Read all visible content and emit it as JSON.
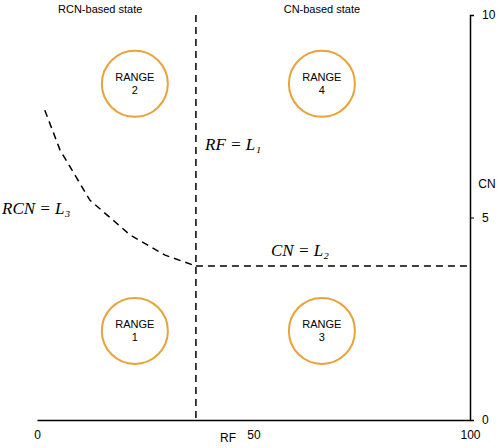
{
  "chart_data": {
    "type": "line",
    "x_label": "RF",
    "y_label": "CN",
    "xlim": [
      0,
      100
    ],
    "ylim": [
      0,
      10
    ],
    "xticks": [
      0,
      50,
      100
    ],
    "yticks": [
      0,
      5,
      10
    ],
    "annotations": [
      {
        "text": "RCN-based state",
        "x": 14.6
      },
      {
        "text": "CN-based state",
        "x": 65.8
      }
    ],
    "series": [
      {
        "name": "RF = L₁",
        "type": "line",
        "line_style": "dashed",
        "color": "#000000",
        "x": [
          36.7,
          36.7
        ],
        "values": [
          10,
          0
        ]
      },
      {
        "name": "CN = L₂",
        "type": "line",
        "line_style": "dashed",
        "color": "#000000",
        "x": [
          36.7,
          100
        ],
        "values": [
          3.8,
          3.8
        ]
      },
      {
        "name": "RCN = L₃",
        "type": "line",
        "line_style": "dashed",
        "color": "#000000",
        "x": [
          1.8,
          5.3,
          12.2,
          21.5,
          29.6,
          36.7
        ],
        "values": [
          7.65,
          6.67,
          5.43,
          4.57,
          4.07,
          3.8
        ]
      },
      {
        "type": "scatter",
        "marker": "circle",
        "color": "#e8a33a",
        "labels": [
          "RANGE 1",
          "RANGE 2",
          "RANGE 3",
          "RANGE 4"
        ],
        "x": [
          22.6,
          22.6,
          65.8,
          65.8
        ],
        "values": [
          2.2,
          8.3,
          2.2,
          8.3
        ]
      }
    ]
  }
}
